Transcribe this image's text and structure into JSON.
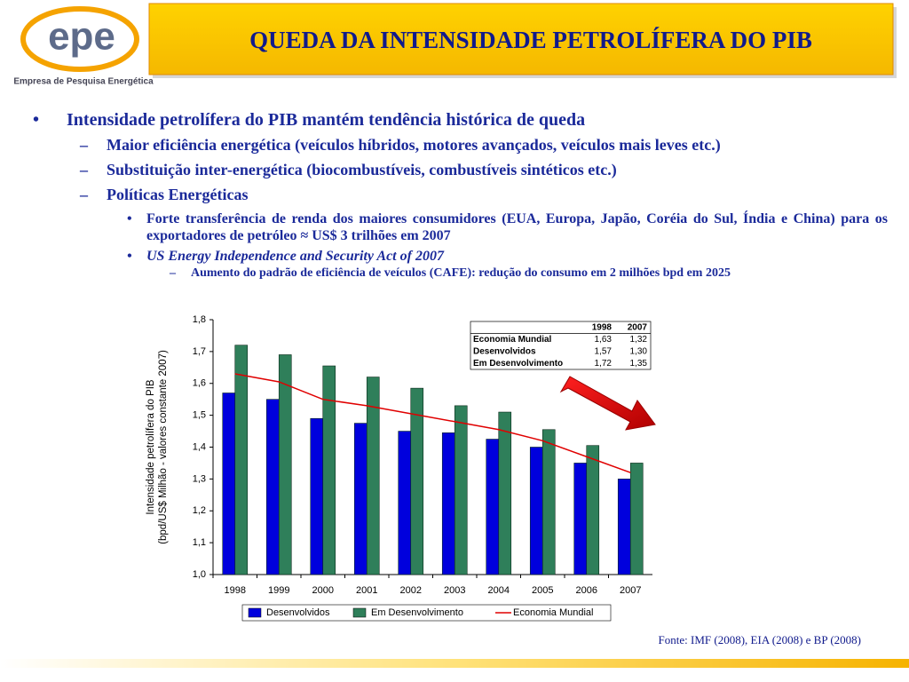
{
  "logo": {
    "name": "epe",
    "subtitle": "Empresa de Pesquisa Energética"
  },
  "title": "QUEDA DA INTENSIDADE PETROLÍFERA DO PIB",
  "bullets": [
    {
      "level": 1,
      "text": "Intensidade petrolífera do PIB mantém tendência histórica de queda"
    },
    {
      "level": 2,
      "text": "Maior eficiência energética (veículos híbridos, motores avançados, veículos mais leves etc.)"
    },
    {
      "level": 2,
      "text": "Substituição inter-energética (biocombustíveis, combustíveis sintéticos etc.)"
    },
    {
      "level": 2,
      "text": "Políticas Energéticas"
    },
    {
      "level": 3,
      "text": "Forte transferência de renda dos maiores consumidores (EUA, Europa, Japão, Coréia do Sul, Índia e China) para os exportadores de petróleo ≈ US$ 3 trilhões em 2007"
    },
    {
      "level": 3,
      "text": "US Energy Independence and Security Act of 2007",
      "italic": true
    },
    {
      "level": 4,
      "text": "Aumento do padrão de eficiência de veículos (CAFE): redução do consumo em 2 milhões bpd em 2025"
    }
  ],
  "source": "Fonte: IMF (2008), EIA (2008) e BP (2008)",
  "chart_data": {
    "type": "bar",
    "ylabel": [
      "Intensidade petrolífera do PIB",
      "(bpd/US$ Milhão - valores constante 2007)"
    ],
    "categories": [
      "1998",
      "1999",
      "2000",
      "2001",
      "2002",
      "2003",
      "2004",
      "2005",
      "2006",
      "2007"
    ],
    "series": [
      {
        "name": "Desenvolvidos",
        "color": "#0000dd",
        "type": "bar",
        "values": [
          1.57,
          1.55,
          1.49,
          1.475,
          1.45,
          1.445,
          1.425,
          1.4,
          1.35,
          1.3
        ]
      },
      {
        "name": "Em Desenvolvimento",
        "color": "#2f7f5a",
        "type": "bar",
        "values": [
          1.72,
          1.69,
          1.655,
          1.62,
          1.585,
          1.53,
          1.51,
          1.455,
          1.405,
          1.35
        ]
      },
      {
        "name": "Economia Mundial",
        "color": "#e00000",
        "type": "line",
        "values": [
          1.63,
          1.605,
          1.55,
          1.53,
          1.505,
          1.48,
          1.455,
          1.42,
          1.37,
          1.32
        ]
      }
    ],
    "ylim": [
      1.0,
      1.8
    ],
    "yticks": [
      {
        "value": 1.0,
        "label": "1,0"
      },
      {
        "value": 1.1,
        "label": "1,1"
      },
      {
        "value": 1.2,
        "label": "1,2"
      },
      {
        "value": 1.3,
        "label": "1,3"
      },
      {
        "value": 1.4,
        "label": "1,4"
      },
      {
        "value": 1.5,
        "label": "1,5"
      },
      {
        "value": 1.6,
        "label": "1,6"
      },
      {
        "value": 1.7,
        "label": "1,7"
      },
      {
        "value": 1.8,
        "label": "1,8"
      }
    ],
    "grid": false,
    "legend": "bottom",
    "data_table": {
      "header": [
        "1998",
        "2007"
      ],
      "rows": [
        [
          "Economia Mundial",
          "1,63",
          "1,32"
        ],
        [
          "Desenvolvidos",
          "1,57",
          "1,30"
        ],
        [
          "Em Desenvolvimento",
          "1,72",
          "1,35"
        ]
      ]
    }
  }
}
